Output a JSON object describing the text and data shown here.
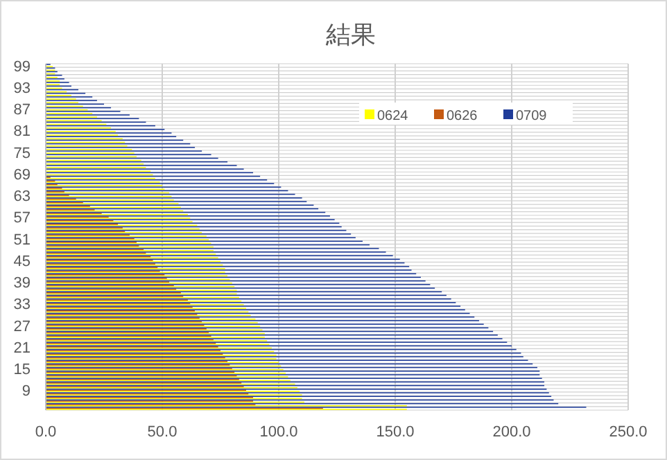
{
  "chart_data": {
    "type": "bar",
    "orientation": "horizontal",
    "title": "結果",
    "categories": [
      "99",
      null,
      null,
      null,
      null,
      null,
      "93",
      null,
      null,
      null,
      null,
      null,
      "87",
      null,
      null,
      null,
      null,
      null,
      "81",
      null,
      null,
      null,
      null,
      null,
      "75",
      null,
      null,
      null,
      null,
      null,
      "69",
      null,
      null,
      null,
      null,
      null,
      "63",
      null,
      null,
      null,
      null,
      null,
      "57",
      null,
      null,
      null,
      null,
      null,
      "51",
      null,
      null,
      null,
      null,
      null,
      "45",
      null,
      null,
      null,
      null,
      null,
      "39",
      null,
      null,
      null,
      null,
      null,
      "33",
      null,
      null,
      null,
      null,
      null,
      "27",
      null,
      null,
      null,
      null,
      null,
      "21",
      null,
      null,
      null,
      null,
      null,
      "15",
      null,
      null,
      null,
      null,
      null,
      "9",
      null,
      null,
      null,
      null,
      null
    ],
    "series": [
      {
        "name": "0624",
        "color": "#ffff00",
        "values": [
          3,
          4,
          4,
          5,
          6,
          6,
          7,
          9,
          11,
          13,
          14,
          16,
          18,
          20,
          22,
          24,
          26,
          28,
          30,
          31,
          33,
          34,
          35,
          37,
          38,
          39,
          41,
          42,
          43,
          45,
          46,
          47,
          49,
          50,
          51,
          53,
          54,
          55,
          57,
          58,
          59,
          61,
          62,
          63,
          65,
          66,
          67,
          69,
          70,
          71,
          72,
          72,
          73,
          74,
          75,
          76,
          77,
          77,
          78,
          79,
          80,
          81,
          82,
          82,
          83,
          84,
          85,
          86,
          87,
          88,
          90,
          91,
          92,
          93,
          94,
          94,
          95,
          96,
          97,
          98,
          99,
          99,
          100,
          101,
          102,
          103,
          104,
          105,
          107,
          108,
          109,
          110,
          110,
          111,
          155,
          155
        ]
      },
      {
        "name": "0626",
        "color": "#c55a11",
        "values": [
          null,
          null,
          null,
          null,
          null,
          null,
          null,
          null,
          null,
          null,
          null,
          null,
          null,
          null,
          null,
          null,
          null,
          null,
          null,
          null,
          null,
          null,
          null,
          null,
          null,
          null,
          null,
          null,
          null,
          null,
          null,
          2,
          4,
          5,
          7,
          8,
          10,
          13,
          16,
          19,
          21,
          24,
          27,
          29,
          31,
          33,
          34,
          36,
          38,
          39,
          40,
          42,
          43,
          45,
          46,
          47,
          48,
          49,
          51,
          52,
          53,
          55,
          56,
          58,
          59,
          61,
          62,
          63,
          64,
          65,
          66,
          67,
          68,
          69,
          70,
          71,
          72,
          73,
          74,
          75,
          76,
          77,
          78,
          79,
          80,
          81,
          82,
          83,
          84,
          85,
          86,
          87,
          89,
          89,
          90,
          119
        ]
      },
      {
        "name": "0709",
        "color": "#1f3c99",
        "values": [
          2,
          4,
          5,
          7,
          8,
          10,
          11,
          14,
          17,
          20,
          22,
          25,
          28,
          32,
          36,
          40,
          43,
          47,
          51,
          54,
          56,
          59,
          62,
          64,
          67,
          71,
          74,
          78,
          82,
          85,
          89,
          92,
          95,
          98,
          101,
          104,
          107,
          110,
          112,
          115,
          117,
          120,
          122,
          124,
          126,
          127,
          129,
          131,
          133,
          136,
          139,
          143,
          146,
          149,
          152,
          154,
          156,
          157,
          159,
          161,
          163,
          165,
          167,
          170,
          172,
          174,
          176,
          178,
          180,
          182,
          184,
          186,
          188,
          190,
          192,
          194,
          196,
          198,
          200,
          202,
          204,
          205,
          207,
          209,
          211,
          212,
          212,
          213,
          214,
          214,
          215,
          216,
          217,
          218,
          220,
          232
        ]
      }
    ],
    "xlim": [
      0,
      250
    ],
    "xticks": [
      {
        "value": 0,
        "label": "0.0"
      },
      {
        "value": 50,
        "label": "50.0"
      },
      {
        "value": 100,
        "label": "100.0"
      },
      {
        "value": 150,
        "label": "150.0"
      },
      {
        "value": 200,
        "label": "200.0"
      },
      {
        "value": 250,
        "label": "250.0"
      }
    ],
    "grid": true,
    "legend": "top right"
  }
}
